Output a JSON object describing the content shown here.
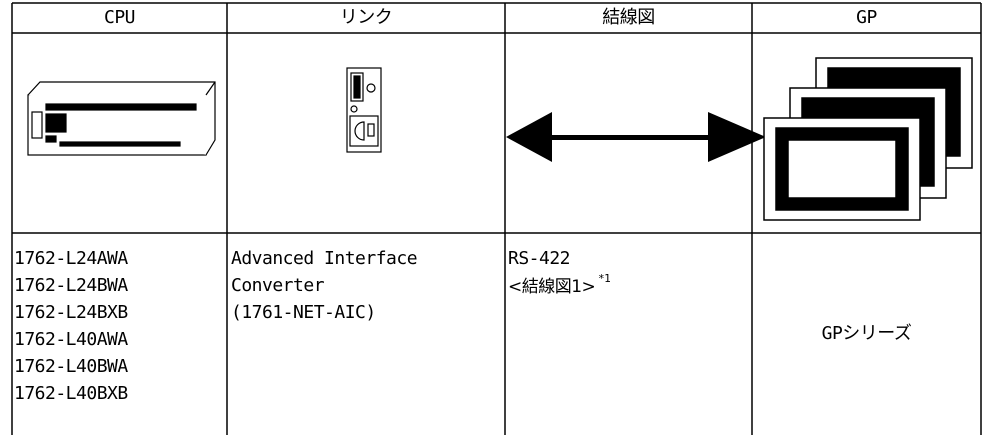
{
  "table": {
    "headers": [
      "CPU",
      "リンク",
      "結線図",
      "GP"
    ],
    "cpu_models": [
      "1762-L24AWA",
      "1762-L24BWA",
      "1762-L24BXB",
      "1762-L40AWA",
      "1762-L40BWA",
      "1762-L40BXB"
    ],
    "link": [
      "Advanced Interface",
      "Converter",
      "(1761-NET-AIC)"
    ],
    "wiring": {
      "type": "RS-422",
      "diagram": "<結線図1>",
      "note": "*1"
    },
    "gp": "GPシリーズ"
  }
}
